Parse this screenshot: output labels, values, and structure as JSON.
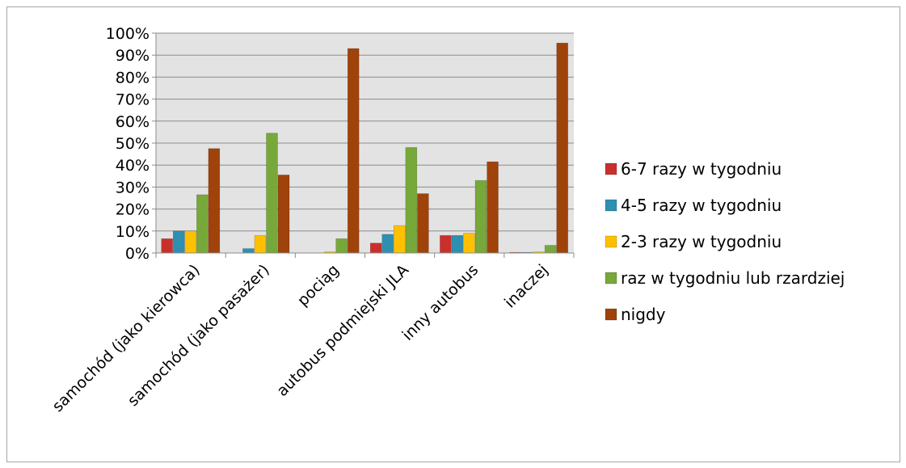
{
  "chart_data": {
    "type": "bar",
    "title": "",
    "xlabel": "",
    "ylabel": "",
    "ylim": [
      0,
      100
    ],
    "y_ticks": [
      "0%",
      "10%",
      "20%",
      "30%",
      "40%",
      "50%",
      "60%",
      "70%",
      "80%",
      "90%",
      "100%"
    ],
    "grid": true,
    "legend_position": "right",
    "categories": [
      "samochód (jako kierowca)",
      "samochód (jako pasażer)",
      "pociąg",
      "autobus podmiejski JLA",
      "inny autobus",
      "inaczej"
    ],
    "series": [
      {
        "name": "6-7 razy w tygodniu",
        "color": "#c9302c",
        "values": [
          6.5,
          0,
          0,
          4.5,
          8.0,
          0.3
        ]
      },
      {
        "name": "4-5 razy w tygodniu",
        "color": "#2f8fb0",
        "values": [
          10.0,
          2.0,
          0,
          8.5,
          8.0,
          0.3
        ]
      },
      {
        "name": "2-3 razy w tygodniu",
        "color": "#ffc000",
        "values": [
          10.0,
          8.0,
          0.5,
          12.5,
          9.0,
          0.5
        ]
      },
      {
        "name": "raz w tygodniu lub rzardziej",
        "color": "#76a83a",
        "values": [
          26.5,
          54.5,
          6.5,
          48.0,
          33.0,
          3.5
        ]
      },
      {
        "name": "nigdy",
        "color": "#a0430a",
        "values": [
          47.5,
          35.5,
          93.0,
          27.0,
          41.5,
          95.5
        ]
      }
    ]
  }
}
